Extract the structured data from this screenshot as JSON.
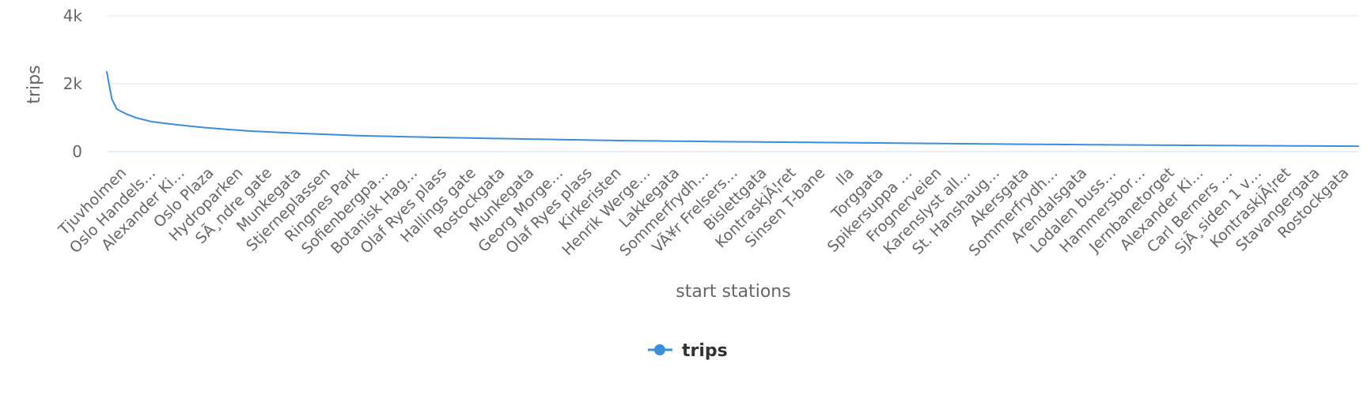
{
  "chart_data": {
    "type": "line",
    "title": "",
    "xlabel": "start stations",
    "ylabel": "trips",
    "ylim": [
      0,
      4000
    ],
    "y_ticks": [
      {
        "value": 0,
        "label": "0"
      },
      {
        "value": 2000,
        "label": "2k"
      },
      {
        "value": 4000,
        "label": "4k"
      }
    ],
    "grid": true,
    "legend_position": "bottom-center",
    "point_count": 250,
    "categories": [
      "Tjuvholmen",
      "Oslo Handels…",
      "Alexander Ki…",
      "Oslo Plaza",
      "Hydroparken",
      "SÃ¸ndre gate",
      "Munkegata",
      "Stjerneplassen",
      "Ringnes Park",
      "Sofienbergpa…",
      "Botanisk Hag…",
      "Olaf Ryes plass",
      "Hallings gate",
      "Rostockgata",
      "Munkegata",
      "Georg Morge…",
      "Olaf Ryes plass",
      "Kirkeristen",
      "Henrik Werge…",
      "Lakkegata",
      "Sommerfrydh…",
      "VÃ¥r Frelsers…",
      "Bislettgata",
      "KontraskjÃ¦ret",
      "Sinsen T-bane",
      "Ila",
      "Torggata",
      "Spikersuppa …",
      "Frognerveien",
      "Karenslyst all…",
      "St. Hanshaug…",
      "Akersgata",
      "Sommerfrydh…",
      "Arendalsgata",
      "Lodalen buss…",
      "Hammersbor…",
      "Jernbanetorget",
      "Alexander Ki…",
      "Carl Berners …",
      "SjÃ¸siden 1 v…",
      "KontraskjÃ¦ret",
      "Stavangergata",
      "Rostockgata"
    ],
    "series": [
      {
        "name": "trips",
        "color": "#3b8fd9",
        "key_points": [
          [
            0,
            2350
          ],
          [
            1,
            1550
          ],
          [
            2,
            1250
          ],
          [
            4,
            1100
          ],
          [
            6,
            990
          ],
          [
            9,
            880
          ],
          [
            14,
            790
          ],
          [
            20,
            700
          ],
          [
            28,
            610
          ],
          [
            38,
            540
          ],
          [
            50,
            470
          ],
          [
            65,
            420
          ],
          [
            80,
            380
          ],
          [
            100,
            330
          ],
          [
            125,
            290
          ],
          [
            150,
            260
          ],
          [
            180,
            220
          ],
          [
            210,
            190
          ],
          [
            235,
            170
          ],
          [
            249,
            160
          ]
        ]
      }
    ]
  }
}
